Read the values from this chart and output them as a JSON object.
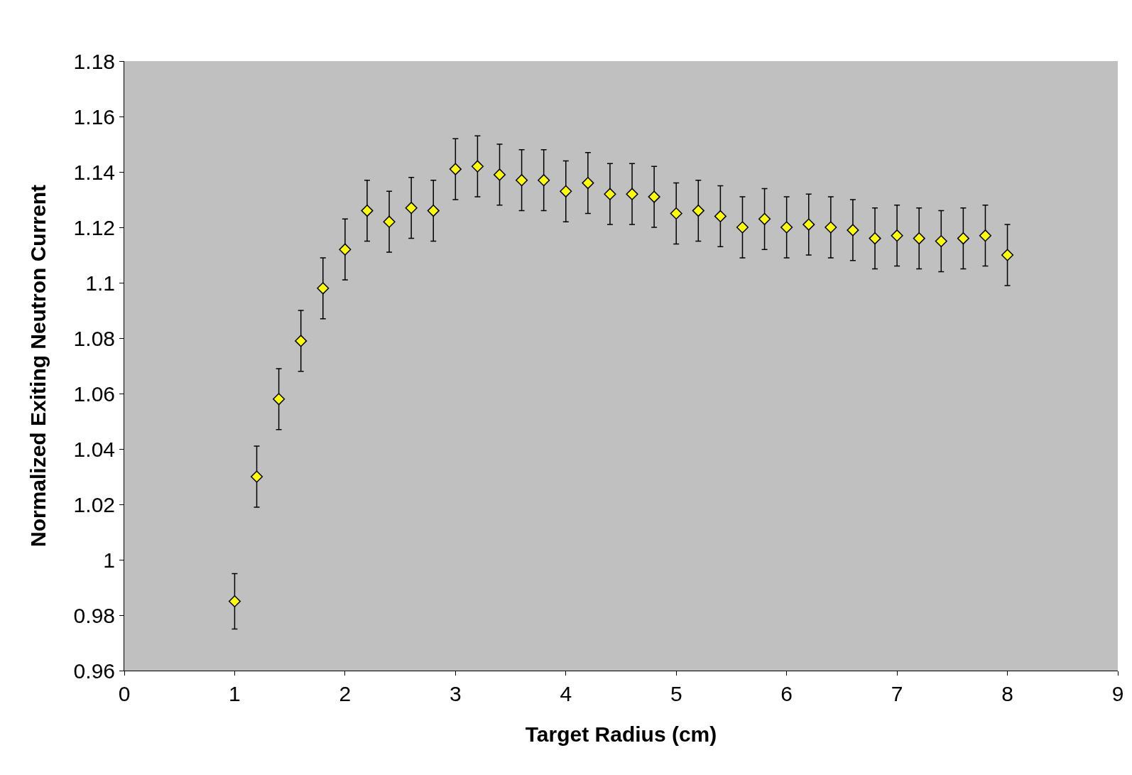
{
  "chart_data": {
    "type": "scatter",
    "xlabel": "Target Radius (cm)",
    "ylabel": "Normalized Exiting Neutron Current",
    "x": [
      1,
      1.2,
      1.4,
      1.6,
      1.8,
      2,
      2.2,
      2.4,
      2.6,
      2.8,
      3,
      3.2,
      3.4,
      3.6,
      3.8,
      4,
      4.2,
      4.4,
      4.6,
      4.8,
      5,
      5.2,
      5.4,
      5.6,
      5.8,
      6,
      6.2,
      6.4,
      6.6,
      6.8,
      7,
      7.2,
      7.4,
      7.6,
      7.8,
      8
    ],
    "series": [
      {
        "color": "#ffff00",
        "values": [
          0.985,
          1.03,
          1.058,
          1.079,
          1.098,
          1.112,
          1.126,
          1.122,
          1.127,
          1.126,
          1.141,
          1.142,
          1.139,
          1.137,
          1.137,
          1.133,
          1.136,
          1.132,
          1.132,
          1.131,
          1.125,
          1.126,
          1.124,
          1.12,
          1.123,
          1.12,
          1.121,
          1.12,
          1.119,
          1.116,
          1.117,
          1.116,
          1.115,
          1.116,
          1.117,
          1.11
        ],
        "errors": [
          0.01,
          0.011,
          0.011,
          0.011,
          0.011,
          0.011,
          0.011,
          0.011,
          0.011,
          0.011,
          0.011,
          0.011,
          0.011,
          0.011,
          0.011,
          0.011,
          0.011,
          0.011,
          0.011,
          0.011,
          0.011,
          0.011,
          0.011,
          0.011,
          0.011,
          0.011,
          0.011,
          0.011,
          0.011,
          0.011,
          0.011,
          0.011,
          0.011,
          0.011,
          0.011,
          0.011
        ]
      }
    ],
    "xlim": [
      0,
      9
    ],
    "xticks": [
      0,
      1,
      2,
      3,
      4,
      5,
      6,
      7,
      8,
      9
    ],
    "ylim": [
      0.96,
      1.18
    ],
    "yticks": [
      0.96,
      0.98,
      1,
      1.02,
      1.04,
      1.06,
      1.08,
      1.1,
      1.12,
      1.14,
      1.16,
      1.18
    ],
    "grid": false,
    "marker": "diamond",
    "line_style": "none"
  }
}
